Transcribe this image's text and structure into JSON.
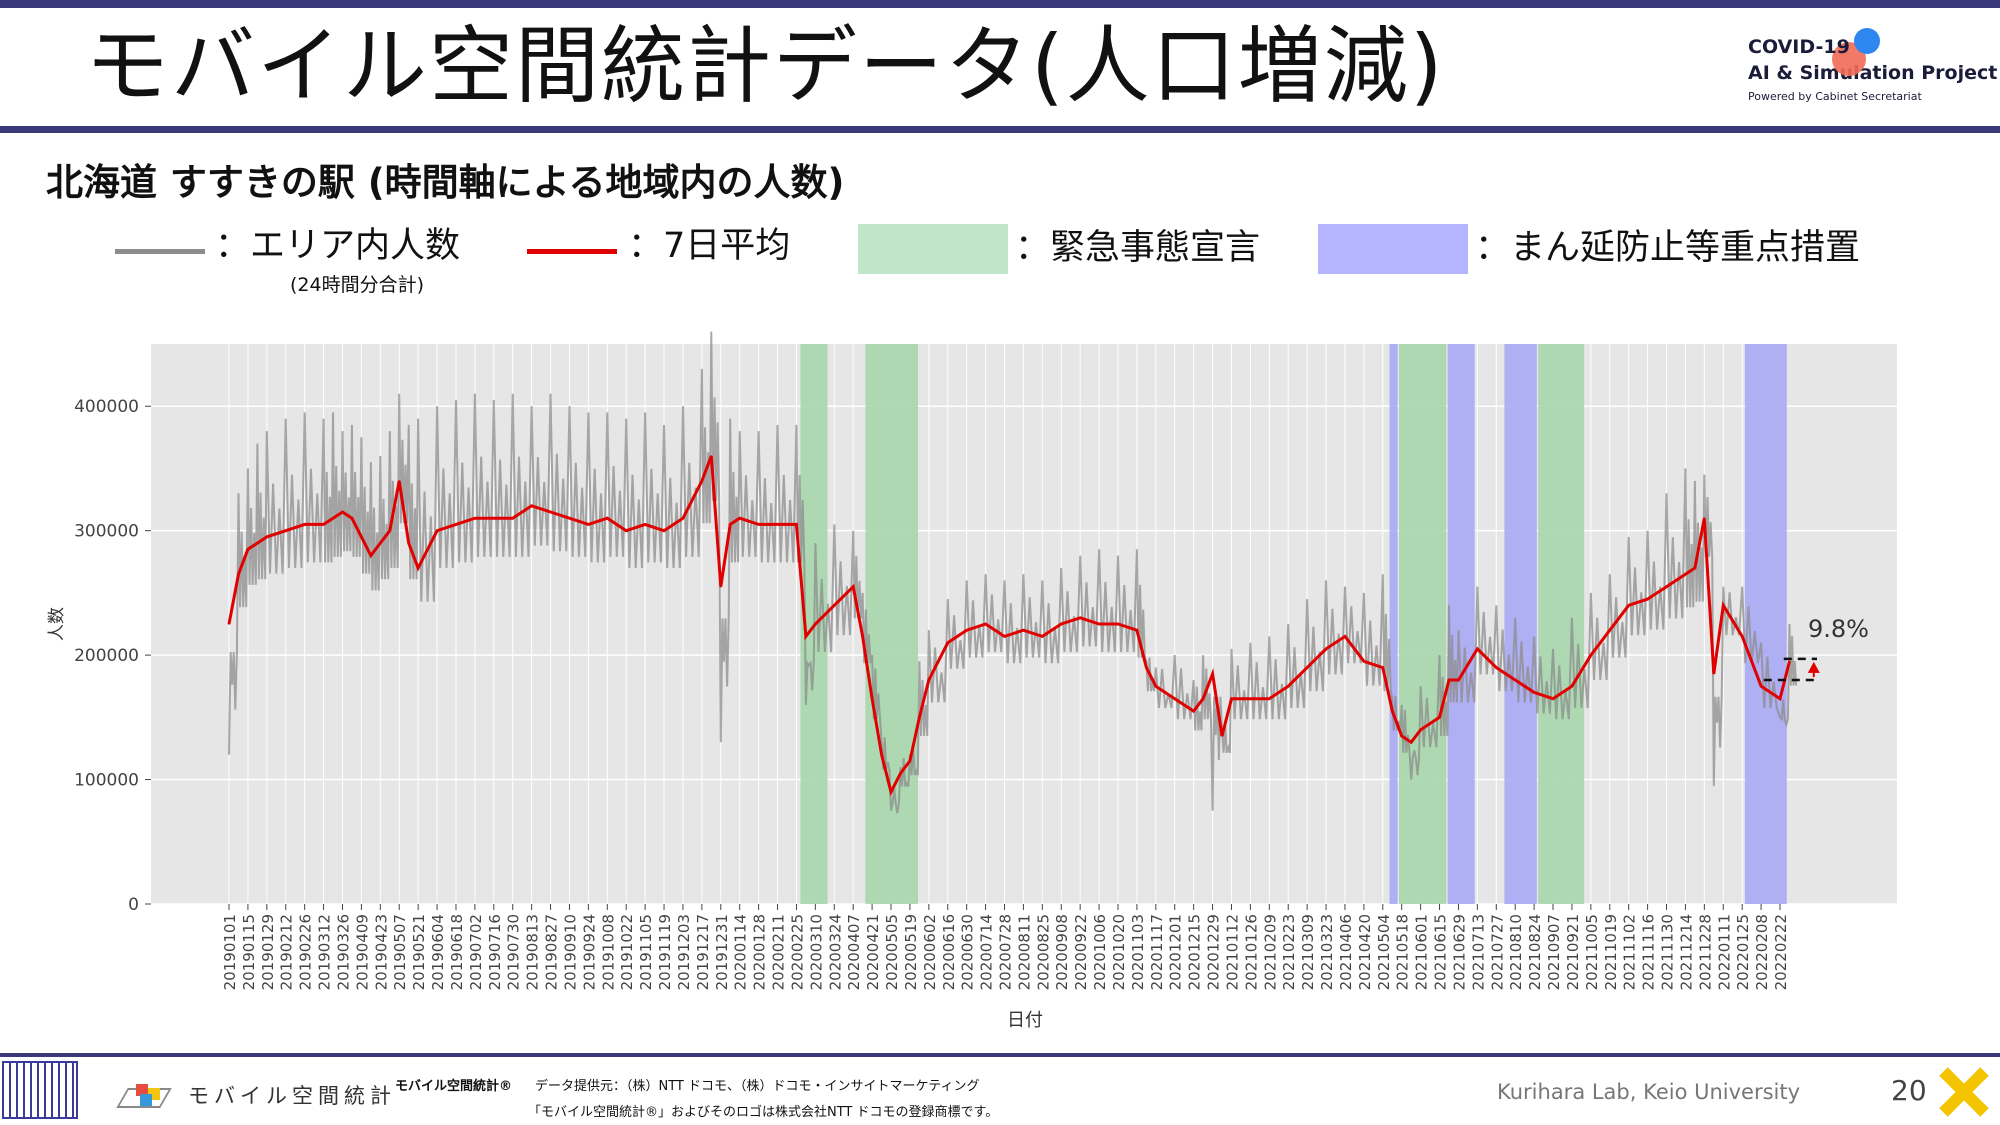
{
  "header": {
    "title": "モバイル空間統計データ(人口増減)",
    "logo_line1": "COVID-19",
    "logo_line2": "AI & Simulation Project",
    "logo_line3": "Powered by Cabinet Secretariat"
  },
  "subtitle": "北海道 すすきの駅 (時間軸による地域内の人数)",
  "legend": {
    "gray_label": "：エリア内人数",
    "gray_sub": "(24時間分合計)",
    "red_label": "：7日平均",
    "green_label": "：緊急事態宣言",
    "blue_label": "：まん延防止等重点措置",
    "colors": {
      "gray": "#8c8c8c",
      "red": "#e00000",
      "green": "#bfe6c8",
      "blue": "#b5b5ff"
    }
  },
  "chart_data": {
    "type": "line",
    "xlabel": "日付",
    "ylabel": "人数",
    "ylim": [
      0,
      450000
    ],
    "yticks": [
      0,
      100000,
      200000,
      300000,
      400000
    ],
    "ytick_labels": [
      "0",
      "100000",
      "200000",
      "300000",
      "400000"
    ],
    "x_tick_labels": [
      "20190101",
      "20190115",
      "20190129",
      "20190212",
      "20190226",
      "20190312",
      "20190326",
      "20190409",
      "20190423",
      "20190507",
      "20190521",
      "20190604",
      "20190618",
      "20190702",
      "20190716",
      "20190730",
      "20190813",
      "20190827",
      "20190910",
      "20190924",
      "20191008",
      "20191022",
      "20191105",
      "20191119",
      "20191203",
      "20191217",
      "20191231",
      "20200114",
      "20200128",
      "20200211",
      "20200225",
      "20200310",
      "20200324",
      "20200407",
      "20200421",
      "20200505",
      "20200519",
      "20200602",
      "20200616",
      "20200630",
      "20200714",
      "20200728",
      "20200811",
      "20200825",
      "20200908",
      "20200922",
      "20201006",
      "20201020",
      "20201103",
      "20201117",
      "20201201",
      "20201215",
      "20201229",
      "20210112",
      "20210126",
      "20210209",
      "20210223",
      "20210309",
      "20210323",
      "20210406",
      "20210420",
      "20210504",
      "20210518",
      "20210601",
      "20210615",
      "20210629",
      "20210713",
      "20210727",
      "20210810",
      "20210824",
      "20210907",
      "20210921",
      "20211005",
      "20211019",
      "20211102",
      "20211116",
      "20211130",
      "20211214",
      "20211228",
      "20220111",
      "20220125",
      "20220208",
      "20220222"
    ],
    "grid": true,
    "series": [
      {
        "name": "7日平均",
        "color": "#e00000",
        "x": [
          "20190101",
          "20190108",
          "20190115",
          "20190122",
          "20190129",
          "20190212",
          "20190226",
          "20190312",
          "20190319",
          "20190326",
          "20190402",
          "20190409",
          "20190416",
          "20190423",
          "20190430",
          "20190507",
          "20190514",
          "20190521",
          "20190604",
          "20190618",
          "20190702",
          "20190716",
          "20190730",
          "20190813",
          "20190827",
          "20190910",
          "20190924",
          "20191008",
          "20191022",
          "20191105",
          "20191119",
          "20191203",
          "20191217",
          "20191224",
          "20191231",
          "20200107",
          "20200114",
          "20200128",
          "20200211",
          "20200225",
          "20200303",
          "20200310",
          "20200324",
          "20200407",
          "20200414",
          "20200421",
          "20200428",
          "20200505",
          "20200512",
          "20200519",
          "20200526",
          "20200602",
          "20200616",
          "20200630",
          "20200714",
          "20200728",
          "20200811",
          "20200825",
          "20200908",
          "20200922",
          "20201006",
          "20201020",
          "20201103",
          "20201110",
          "20201117",
          "20201201",
          "20201215",
          "20201222",
          "20201229",
          "20210105",
          "20210112",
          "20210126",
          "20210209",
          "20210223",
          "20210309",
          "20210323",
          "20210406",
          "20210420",
          "20210504",
          "20210511",
          "20210518",
          "20210525",
          "20210601",
          "20210615",
          "20210622",
          "20210629",
          "20210713",
          "20210727",
          "20210810",
          "20210824",
          "20210907",
          "20210921",
          "20211005",
          "20211019",
          "20211102",
          "20211116",
          "20211130",
          "20211214",
          "20211221",
          "20211228",
          "20220104",
          "20220111",
          "20220125",
          "20220208",
          "20220222",
          "20220301"
        ],
        "values": [
          225000,
          265000,
          285000,
          290000,
          295000,
          300000,
          305000,
          305000,
          310000,
          315000,
          310000,
          295000,
          280000,
          290000,
          300000,
          340000,
          290000,
          270000,
          300000,
          305000,
          310000,
          310000,
          310000,
          320000,
          315000,
          310000,
          305000,
          310000,
          300000,
          305000,
          300000,
          310000,
          340000,
          360000,
          255000,
          305000,
          310000,
          305000,
          305000,
          305000,
          215000,
          225000,
          240000,
          255000,
          215000,
          165000,
          120000,
          90000,
          105000,
          115000,
          150000,
          180000,
          210000,
          220000,
          225000,
          215000,
          220000,
          215000,
          225000,
          230000,
          225000,
          225000,
          220000,
          190000,
          175000,
          165000,
          155000,
          165000,
          185000,
          135000,
          165000,
          165000,
          165000,
          175000,
          190000,
          205000,
          215000,
          195000,
          190000,
          155000,
          135000,
          130000,
          140000,
          150000,
          180000,
          180000,
          205000,
          190000,
          180000,
          170000,
          165000,
          175000,
          200000,
          220000,
          240000,
          245000,
          255000,
          265000,
          270000,
          310000,
          185000,
          240000,
          215000,
          175000,
          165000,
          195000
        ]
      },
      {
        "name": "エリア内人数",
        "color": "#8c8c8c",
        "x": [
          "20190101",
          "20190108",
          "20190115",
          "20190122",
          "20190129",
          "20190212",
          "20190226",
          "20190312",
          "20190319",
          "20190326",
          "20190402",
          "20190409",
          "20190416",
          "20190423",
          "20190430",
          "20190507",
          "20190514",
          "20190521",
          "20190604",
          "20190618",
          "20190702",
          "20190716",
          "20190730",
          "20190813",
          "20190827",
          "20190910",
          "20190924",
          "20191008",
          "20191022",
          "20191105",
          "20191119",
          "20191203",
          "20191217",
          "20191224",
          "20191231",
          "20200107",
          "20200114",
          "20200128",
          "20200211",
          "20200225",
          "20200303",
          "20200310",
          "20200324",
          "20200407",
          "20200414",
          "20200421",
          "20200428",
          "20200505",
          "20200512",
          "20200519",
          "20200526",
          "20200602",
          "20200616",
          "20200630",
          "20200714",
          "20200728",
          "20200811",
          "20200825",
          "20200908",
          "20200922",
          "20201006",
          "20201020",
          "20201103",
          "20201110",
          "20201117",
          "20201201",
          "20201215",
          "20201222",
          "20201229",
          "20210105",
          "20210112",
          "20210126",
          "20210209",
          "20210223",
          "20210309",
          "20210323",
          "20210406",
          "20210420",
          "20210504",
          "20210511",
          "20210518",
          "20210525",
          "20210601",
          "20210615",
          "20210622",
          "20210629",
          "20210713",
          "20210727",
          "20210810",
          "20210824",
          "20210907",
          "20210921",
          "20211005",
          "20211019",
          "20211102",
          "20211116",
          "20211130",
          "20211214",
          "20211221",
          "20211228",
          "20220104",
          "20220111",
          "20220125",
          "20220208",
          "20220222",
          "20220301"
        ],
        "values": [
          120000,
          330000,
          350000,
          370000,
          380000,
          390000,
          395000,
          390000,
          395000,
          380000,
          385000,
          375000,
          355000,
          360000,
          380000,
          410000,
          385000,
          390000,
          400000,
          405000,
          410000,
          405000,
          410000,
          400000,
          410000,
          400000,
          395000,
          395000,
          390000,
          395000,
          385000,
          400000,
          430000,
          460000,
          130000,
          390000,
          380000,
          380000,
          385000,
          385000,
          160000,
          290000,
          305000,
          300000,
          250000,
          200000,
          130000,
          75000,
          110000,
          120000,
          195000,
          220000,
          245000,
          260000,
          265000,
          260000,
          265000,
          260000,
          270000,
          280000,
          285000,
          280000,
          285000,
          195000,
          190000,
          200000,
          180000,
          200000,
          75000,
          140000,
          205000,
          210000,
          215000,
          225000,
          245000,
          260000,
          255000,
          250000,
          265000,
          165000,
          160000,
          100000,
          175000,
          200000,
          240000,
          220000,
          255000,
          240000,
          230000,
          215000,
          205000,
          230000,
          250000,
          265000,
          295000,
          300000,
          330000,
          350000,
          340000,
          345000,
          95000,
          255000,
          255000,
          210000,
          150000,
          225000
        ]
      }
    ],
    "shaded_periods": [
      {
        "type": "緊急事態宣言",
        "start": "20200228",
        "end": "20200319"
      },
      {
        "type": "緊急事態宣言",
        "start": "20200416",
        "end": "20200525"
      },
      {
        "type": "まん延防止等重点措置",
        "start": "20210509",
        "end": "20210515"
      },
      {
        "type": "緊急事態宣言",
        "start": "20210516",
        "end": "20210620"
      },
      {
        "type": "まん延防止等重点措置",
        "start": "20210621",
        "end": "20210711"
      },
      {
        "type": "まん延防止等重点措置",
        "start": "20210802",
        "end": "20210826"
      },
      {
        "type": "緊急事態宣言",
        "start": "20210827",
        "end": "20210930"
      },
      {
        "type": "まん延防止等重点措置",
        "start": "20220127",
        "end": "20220227"
      }
    ],
    "annotation": {
      "text": "9.8%",
      "from": 180000,
      "to": 197000
    }
  },
  "footer": {
    "brand": "モバイル空間統計",
    "product": "モバイル空間統計®",
    "provider": "データ提供元：（株）NTT ドコモ、（株）ドコモ・インサイトマーケティング",
    "trademark": "「モバイル空間統計®」およびそのロゴは株式会社NTT ドコモの登録商標です。",
    "credit": "Kurihara Lab, Keio University",
    "page": "20"
  }
}
